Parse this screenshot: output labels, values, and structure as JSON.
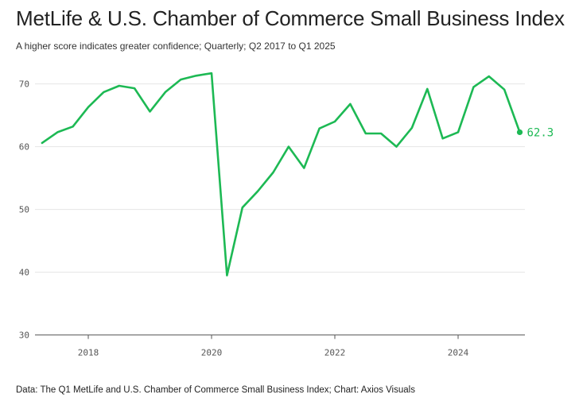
{
  "header": {
    "title": "MetLife & U.S. Chamber of Commerce Small Business Index",
    "subtitle": "A higher score indicates greater confidence; Quarterly; Q2 2017 to Q1 2025"
  },
  "footer": {
    "source": "Data: The Q1 MetLife and U.S. Chamber of Commerce Small Business Index; Chart: Axios Visuals"
  },
  "chart_data": {
    "type": "line",
    "title": "MetLife & U.S. Chamber of Commerce Small Business Index",
    "subtitle": "A higher score indicates greater confidence; Quarterly; Q2 2017 to Q1 2025",
    "xlabel": "",
    "ylabel": "",
    "ylim": [
      30,
      72
    ],
    "xlim": [
      "2017-04",
      "2025-01"
    ],
    "y_ticks": [
      30,
      40,
      50,
      60,
      70
    ],
    "x_ticks": [
      "2018",
      "2020",
      "2022",
      "2024"
    ],
    "grid": true,
    "line_color": "#1db954",
    "end_label": "62.3",
    "x": [
      "Q2 2017",
      "Q3 2017",
      "Q4 2017",
      "Q1 2018",
      "Q2 2018",
      "Q3 2018",
      "Q4 2018",
      "Q1 2019",
      "Q2 2019",
      "Q3 2019",
      "Q4 2019",
      "Q1 2020",
      "Q2 2020",
      "Q3 2020",
      "Q4 2020",
      "Q1 2021",
      "Q2 2021",
      "Q3 2021",
      "Q4 2021",
      "Q1 2022",
      "Q2 2022",
      "Q3 2022",
      "Q4 2022",
      "Q1 2023",
      "Q2 2023",
      "Q3 2023",
      "Q4 2023",
      "Q1 2024",
      "Q2 2024",
      "Q3 2024",
      "Q4 2024",
      "Q1 2025"
    ],
    "series": [
      {
        "values": [
          60.6,
          62.3,
          63.2,
          66.3,
          68.7,
          69.7,
          69.3,
          65.6,
          68.7,
          70.7,
          71.3,
          71.7,
          39.5,
          50.3,
          52.9,
          55.9,
          60.0,
          56.6,
          62.9,
          64.0,
          66.8,
          62.1,
          62.1,
          60.0,
          63.0,
          69.2,
          61.3,
          62.3,
          69.5,
          71.2,
          69.1,
          62.3
        ]
      }
    ]
  }
}
